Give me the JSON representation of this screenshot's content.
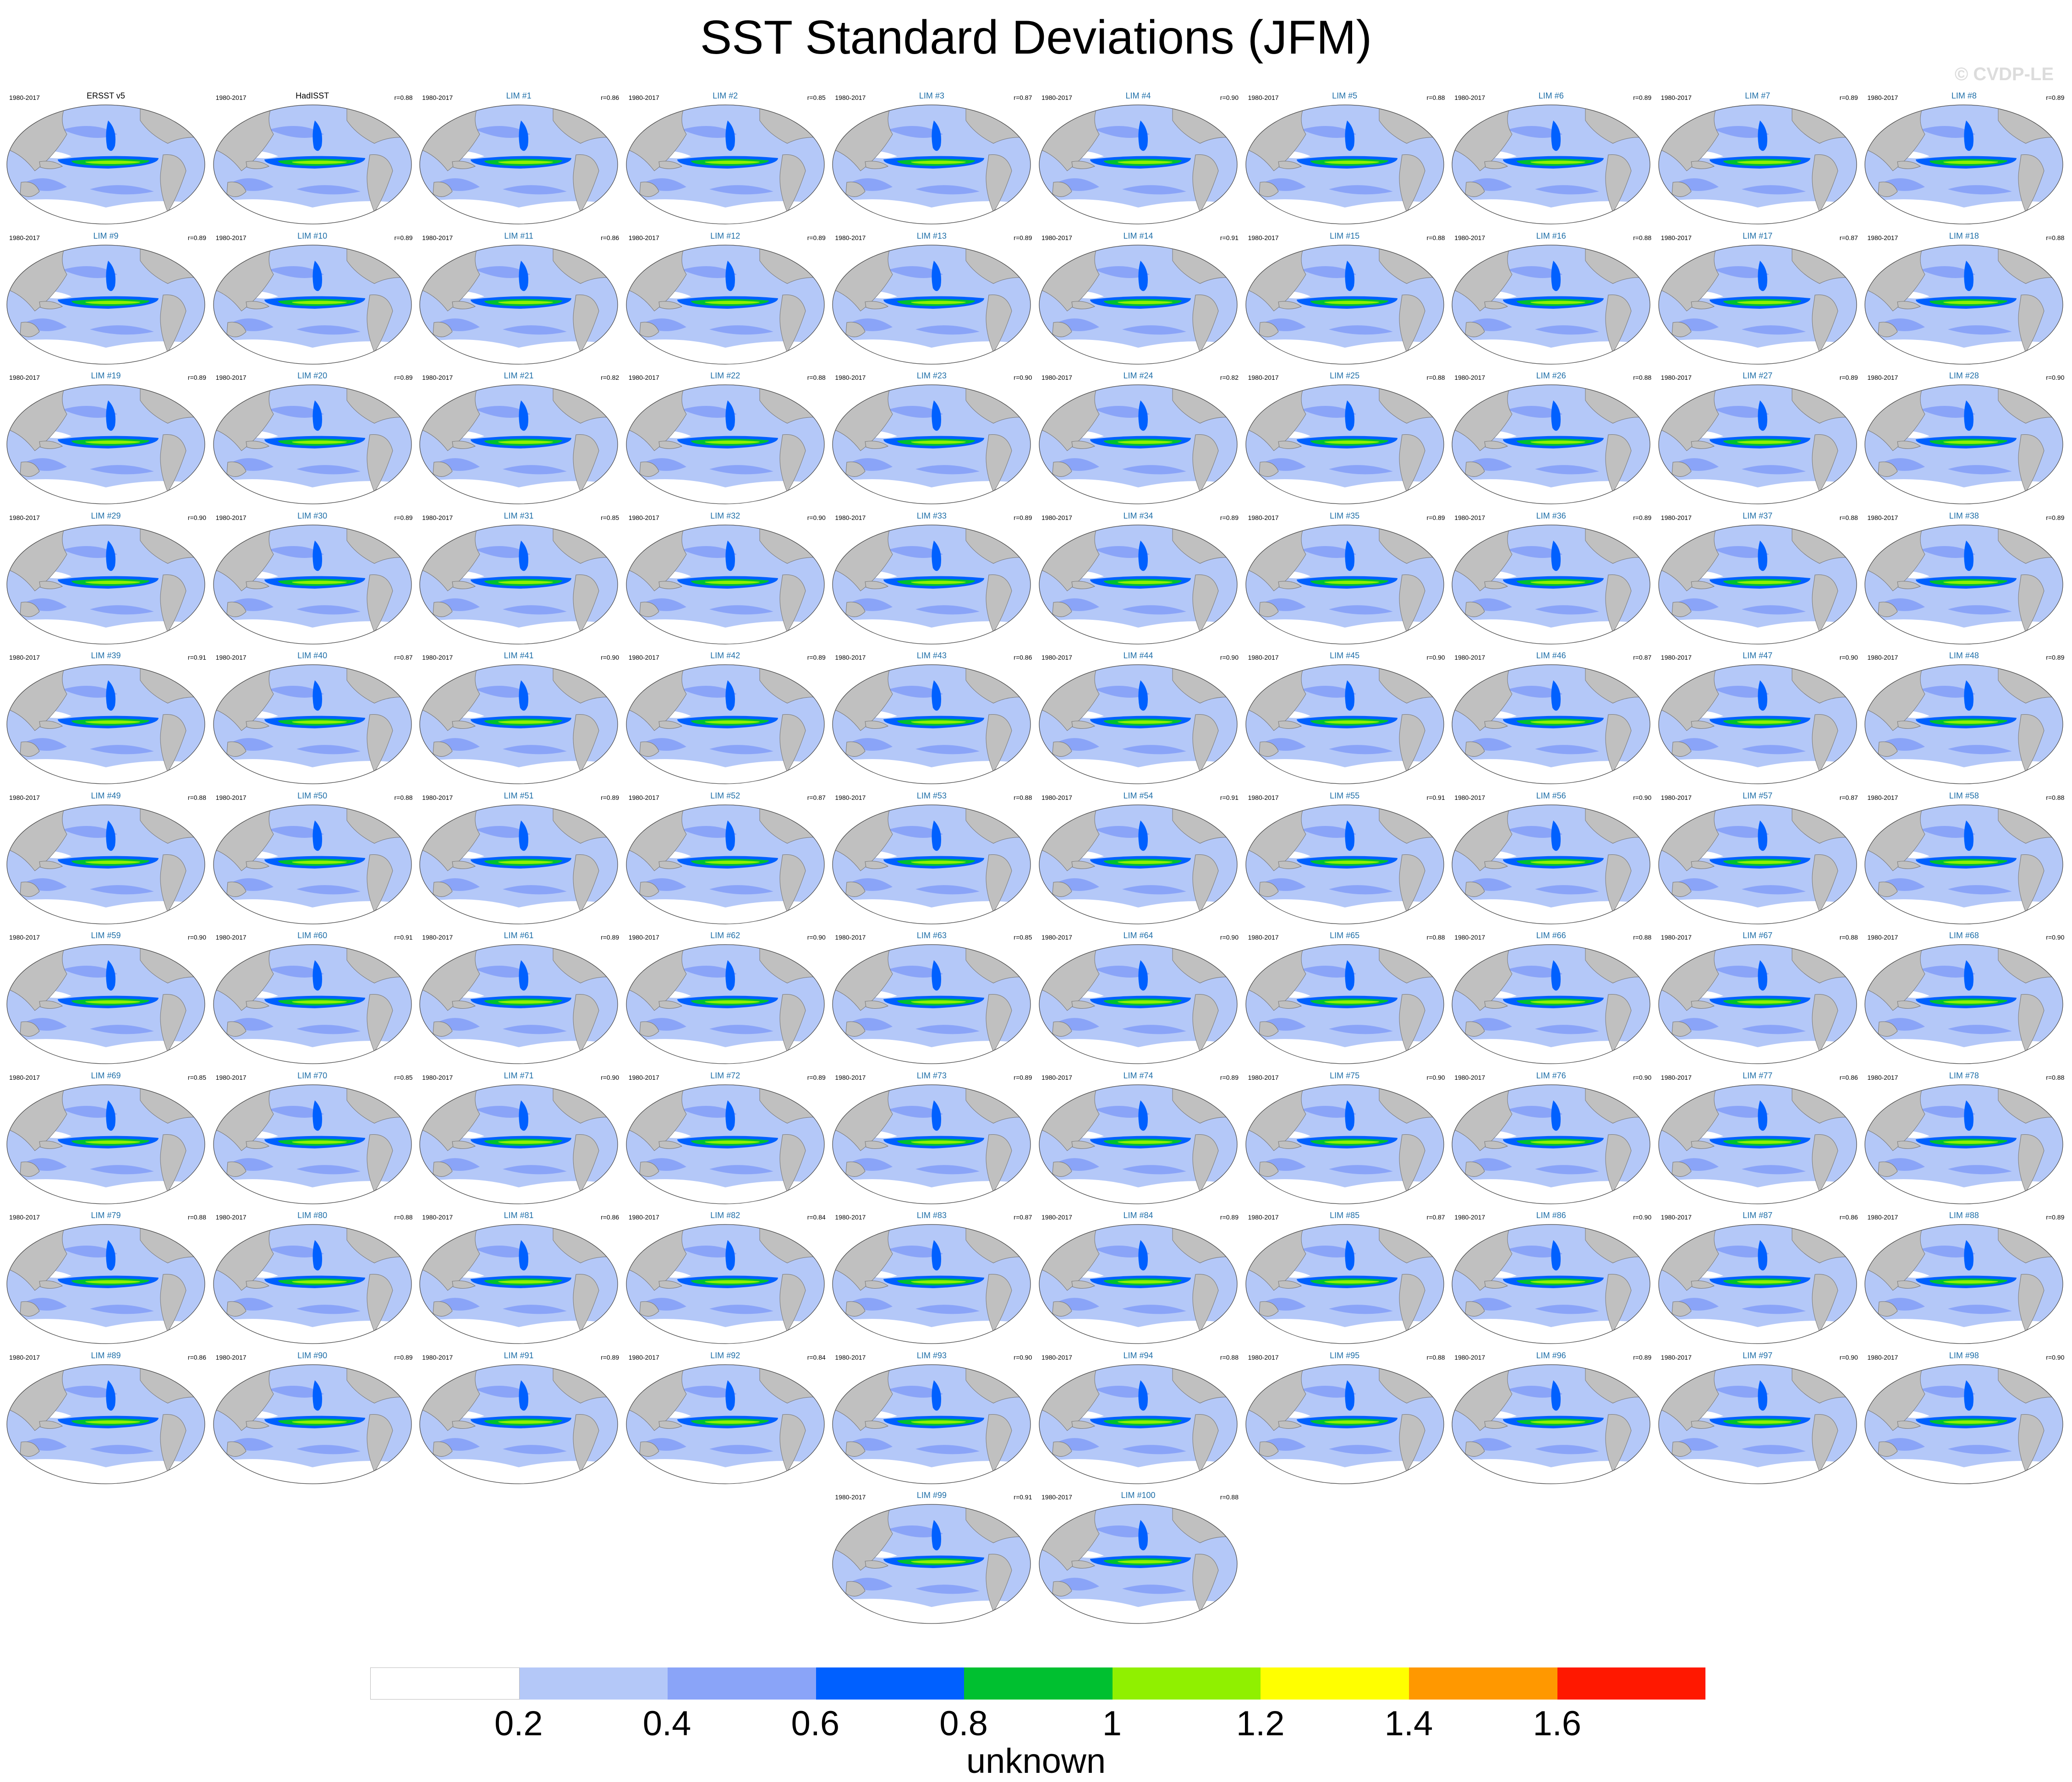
{
  "title": "SST Standard Deviations (JFM)",
  "watermark": "© CVDP-LE",
  "period": "1980-2017",
  "panels": [
    {
      "label": "ERSST v5",
      "type": "obs",
      "corr": ""
    },
    {
      "label": "HadISST",
      "type": "obs",
      "corr": "r=0.88"
    },
    {
      "label": "LIM #1",
      "type": "lim",
      "corr": "r=0.86"
    },
    {
      "label": "LIM #2",
      "type": "lim",
      "corr": "r=0.85"
    },
    {
      "label": "LIM #3",
      "type": "lim",
      "corr": "r=0.87"
    },
    {
      "label": "LIM #4",
      "type": "lim",
      "corr": "r=0.90"
    },
    {
      "label": "LIM #5",
      "type": "lim",
      "corr": "r=0.88"
    },
    {
      "label": "LIM #6",
      "type": "lim",
      "corr": "r=0.89"
    },
    {
      "label": "LIM #7",
      "type": "lim",
      "corr": "r=0.89"
    },
    {
      "label": "LIM #8",
      "type": "lim",
      "corr": "r=0.89"
    },
    {
      "label": "LIM #9",
      "type": "lim",
      "corr": "r=0.89"
    },
    {
      "label": "LIM #10",
      "type": "lim",
      "corr": "r=0.89"
    },
    {
      "label": "LIM #11",
      "type": "lim",
      "corr": "r=0.86"
    },
    {
      "label": "LIM #12",
      "type": "lim",
      "corr": "r=0.89"
    },
    {
      "label": "LIM #13",
      "type": "lim",
      "corr": "r=0.89"
    },
    {
      "label": "LIM #14",
      "type": "lim",
      "corr": "r=0.91"
    },
    {
      "label": "LIM #15",
      "type": "lim",
      "corr": "r=0.88"
    },
    {
      "label": "LIM #16",
      "type": "lim",
      "corr": "r=0.88"
    },
    {
      "label": "LIM #17",
      "type": "lim",
      "corr": "r=0.87"
    },
    {
      "label": "LIM #18",
      "type": "lim",
      "corr": "r=0.88"
    },
    {
      "label": "LIM #19",
      "type": "lim",
      "corr": "r=0.89"
    },
    {
      "label": "LIM #20",
      "type": "lim",
      "corr": "r=0.89"
    },
    {
      "label": "LIM #21",
      "type": "lim",
      "corr": "r=0.82"
    },
    {
      "label": "LIM #22",
      "type": "lim",
      "corr": "r=0.88"
    },
    {
      "label": "LIM #23",
      "type": "lim",
      "corr": "r=0.90"
    },
    {
      "label": "LIM #24",
      "type": "lim",
      "corr": "r=0.82"
    },
    {
      "label": "LIM #25",
      "type": "lim",
      "corr": "r=0.88"
    },
    {
      "label": "LIM #26",
      "type": "lim",
      "corr": "r=0.88"
    },
    {
      "label": "LIM #27",
      "type": "lim",
      "corr": "r=0.89"
    },
    {
      "label": "LIM #28",
      "type": "lim",
      "corr": "r=0.90"
    },
    {
      "label": "LIM #29",
      "type": "lim",
      "corr": "r=0.90"
    },
    {
      "label": "LIM #30",
      "type": "lim",
      "corr": "r=0.89"
    },
    {
      "label": "LIM #31",
      "type": "lim",
      "corr": "r=0.85"
    },
    {
      "label": "LIM #32",
      "type": "lim",
      "corr": "r=0.90"
    },
    {
      "label": "LIM #33",
      "type": "lim",
      "corr": "r=0.89"
    },
    {
      "label": "LIM #34",
      "type": "lim",
      "corr": "r=0.89"
    },
    {
      "label": "LIM #35",
      "type": "lim",
      "corr": "r=0.89"
    },
    {
      "label": "LIM #36",
      "type": "lim",
      "corr": "r=0.89"
    },
    {
      "label": "LIM #37",
      "type": "lim",
      "corr": "r=0.88"
    },
    {
      "label": "LIM #38",
      "type": "lim",
      "corr": "r=0.89"
    },
    {
      "label": "LIM #39",
      "type": "lim",
      "corr": "r=0.91"
    },
    {
      "label": "LIM #40",
      "type": "lim",
      "corr": "r=0.87"
    },
    {
      "label": "LIM #41",
      "type": "lim",
      "corr": "r=0.90"
    },
    {
      "label": "LIM #42",
      "type": "lim",
      "corr": "r=0.89"
    },
    {
      "label": "LIM #43",
      "type": "lim",
      "corr": "r=0.86"
    },
    {
      "label": "LIM #44",
      "type": "lim",
      "corr": "r=0.90"
    },
    {
      "label": "LIM #45",
      "type": "lim",
      "corr": "r=0.90"
    },
    {
      "label": "LIM #46",
      "type": "lim",
      "corr": "r=0.87"
    },
    {
      "label": "LIM #47",
      "type": "lim",
      "corr": "r=0.90"
    },
    {
      "label": "LIM #48",
      "type": "lim",
      "corr": "r=0.89"
    },
    {
      "label": "LIM #49",
      "type": "lim",
      "corr": "r=0.88"
    },
    {
      "label": "LIM #50",
      "type": "lim",
      "corr": "r=0.88"
    },
    {
      "label": "LIM #51",
      "type": "lim",
      "corr": "r=0.89"
    },
    {
      "label": "LIM #52",
      "type": "lim",
      "corr": "r=0.87"
    },
    {
      "label": "LIM #53",
      "type": "lim",
      "corr": "r=0.88"
    },
    {
      "label": "LIM #54",
      "type": "lim",
      "corr": "r=0.91"
    },
    {
      "label": "LIM #55",
      "type": "lim",
      "corr": "r=0.91"
    },
    {
      "label": "LIM #56",
      "type": "lim",
      "corr": "r=0.90"
    },
    {
      "label": "LIM #57",
      "type": "lim",
      "corr": "r=0.87"
    },
    {
      "label": "LIM #58",
      "type": "lim",
      "corr": "r=0.88"
    },
    {
      "label": "LIM #59",
      "type": "lim",
      "corr": "r=0.90"
    },
    {
      "label": "LIM #60",
      "type": "lim",
      "corr": "r=0.91"
    },
    {
      "label": "LIM #61",
      "type": "lim",
      "corr": "r=0.89"
    },
    {
      "label": "LIM #62",
      "type": "lim",
      "corr": "r=0.90"
    },
    {
      "label": "LIM #63",
      "type": "lim",
      "corr": "r=0.85"
    },
    {
      "label": "LIM #64",
      "type": "lim",
      "corr": "r=0.90"
    },
    {
      "label": "LIM #65",
      "type": "lim",
      "corr": "r=0.88"
    },
    {
      "label": "LIM #66",
      "type": "lim",
      "corr": "r=0.88"
    },
    {
      "label": "LIM #67",
      "type": "lim",
      "corr": "r=0.88"
    },
    {
      "label": "LIM #68",
      "type": "lim",
      "corr": "r=0.90"
    },
    {
      "label": "LIM #69",
      "type": "lim",
      "corr": "r=0.85"
    },
    {
      "label": "LIM #70",
      "type": "lim",
      "corr": "r=0.85"
    },
    {
      "label": "LIM #71",
      "type": "lim",
      "corr": "r=0.90"
    },
    {
      "label": "LIM #72",
      "type": "lim",
      "corr": "r=0.89"
    },
    {
      "label": "LIM #73",
      "type": "lim",
      "corr": "r=0.89"
    },
    {
      "label": "LIM #74",
      "type": "lim",
      "corr": "r=0.89"
    },
    {
      "label": "LIM #75",
      "type": "lim",
      "corr": "r=0.90"
    },
    {
      "label": "LIM #76",
      "type": "lim",
      "corr": "r=0.90"
    },
    {
      "label": "LIM #77",
      "type": "lim",
      "corr": "r=0.86"
    },
    {
      "label": "LIM #78",
      "type": "lim",
      "corr": "r=0.88"
    },
    {
      "label": "LIM #79",
      "type": "lim",
      "corr": "r=0.88"
    },
    {
      "label": "LIM #80",
      "type": "lim",
      "corr": "r=0.88"
    },
    {
      "label": "LIM #81",
      "type": "lim",
      "corr": "r=0.86"
    },
    {
      "label": "LIM #82",
      "type": "lim",
      "corr": "r=0.84"
    },
    {
      "label": "LIM #83",
      "type": "lim",
      "corr": "r=0.87"
    },
    {
      "label": "LIM #84",
      "type": "lim",
      "corr": "r=0.89"
    },
    {
      "label": "LIM #85",
      "type": "lim",
      "corr": "r=0.87"
    },
    {
      "label": "LIM #86",
      "type": "lim",
      "corr": "r=0.90"
    },
    {
      "label": "LIM #87",
      "type": "lim",
      "corr": "r=0.86"
    },
    {
      "label": "LIM #88",
      "type": "lim",
      "corr": "r=0.89"
    },
    {
      "label": "LIM #89",
      "type": "lim",
      "corr": "r=0.86"
    },
    {
      "label": "LIM #90",
      "type": "lim",
      "corr": "r=0.89"
    },
    {
      "label": "LIM #91",
      "type": "lim",
      "corr": "r=0.89"
    },
    {
      "label": "LIM #92",
      "type": "lim",
      "corr": "r=0.84"
    },
    {
      "label": "LIM #93",
      "type": "lim",
      "corr": "r=0.90"
    },
    {
      "label": "LIM #94",
      "type": "lim",
      "corr": "r=0.88"
    },
    {
      "label": "LIM #95",
      "type": "lim",
      "corr": "r=0.88"
    },
    {
      "label": "LIM #96",
      "type": "lim",
      "corr": "r=0.89"
    },
    {
      "label": "LIM #97",
      "type": "lim",
      "corr": "r=0.90"
    },
    {
      "label": "LIM #98",
      "type": "lim",
      "corr": "r=0.90"
    },
    {
      "label": "LIM #99",
      "type": "lim",
      "corr": "r=0.91"
    },
    {
      "label": "LIM #100",
      "type": "lim",
      "corr": "r=0.88"
    }
  ],
  "colorbar": {
    "colors": [
      "#ffffff",
      "#b4c8f8",
      "#8aa4f8",
      "#0060ff",
      "#00c030",
      "#90f000",
      "#ffff00",
      "#ff9800",
      "#ff1800"
    ],
    "ticks": [
      "0.2",
      "0.4",
      "0.6",
      "0.8",
      "1",
      "1.2",
      "1.4",
      "1.6"
    ],
    "label": "unknown"
  },
  "colors": {
    "land": "#c0c0c0",
    "ocean_low": "#b4c8f8",
    "ocean_mid": "#8aa4f8",
    "ocean_high": "#0060ff",
    "obs_label": "#000000",
    "lim_label": "#1f6fa8"
  }
}
